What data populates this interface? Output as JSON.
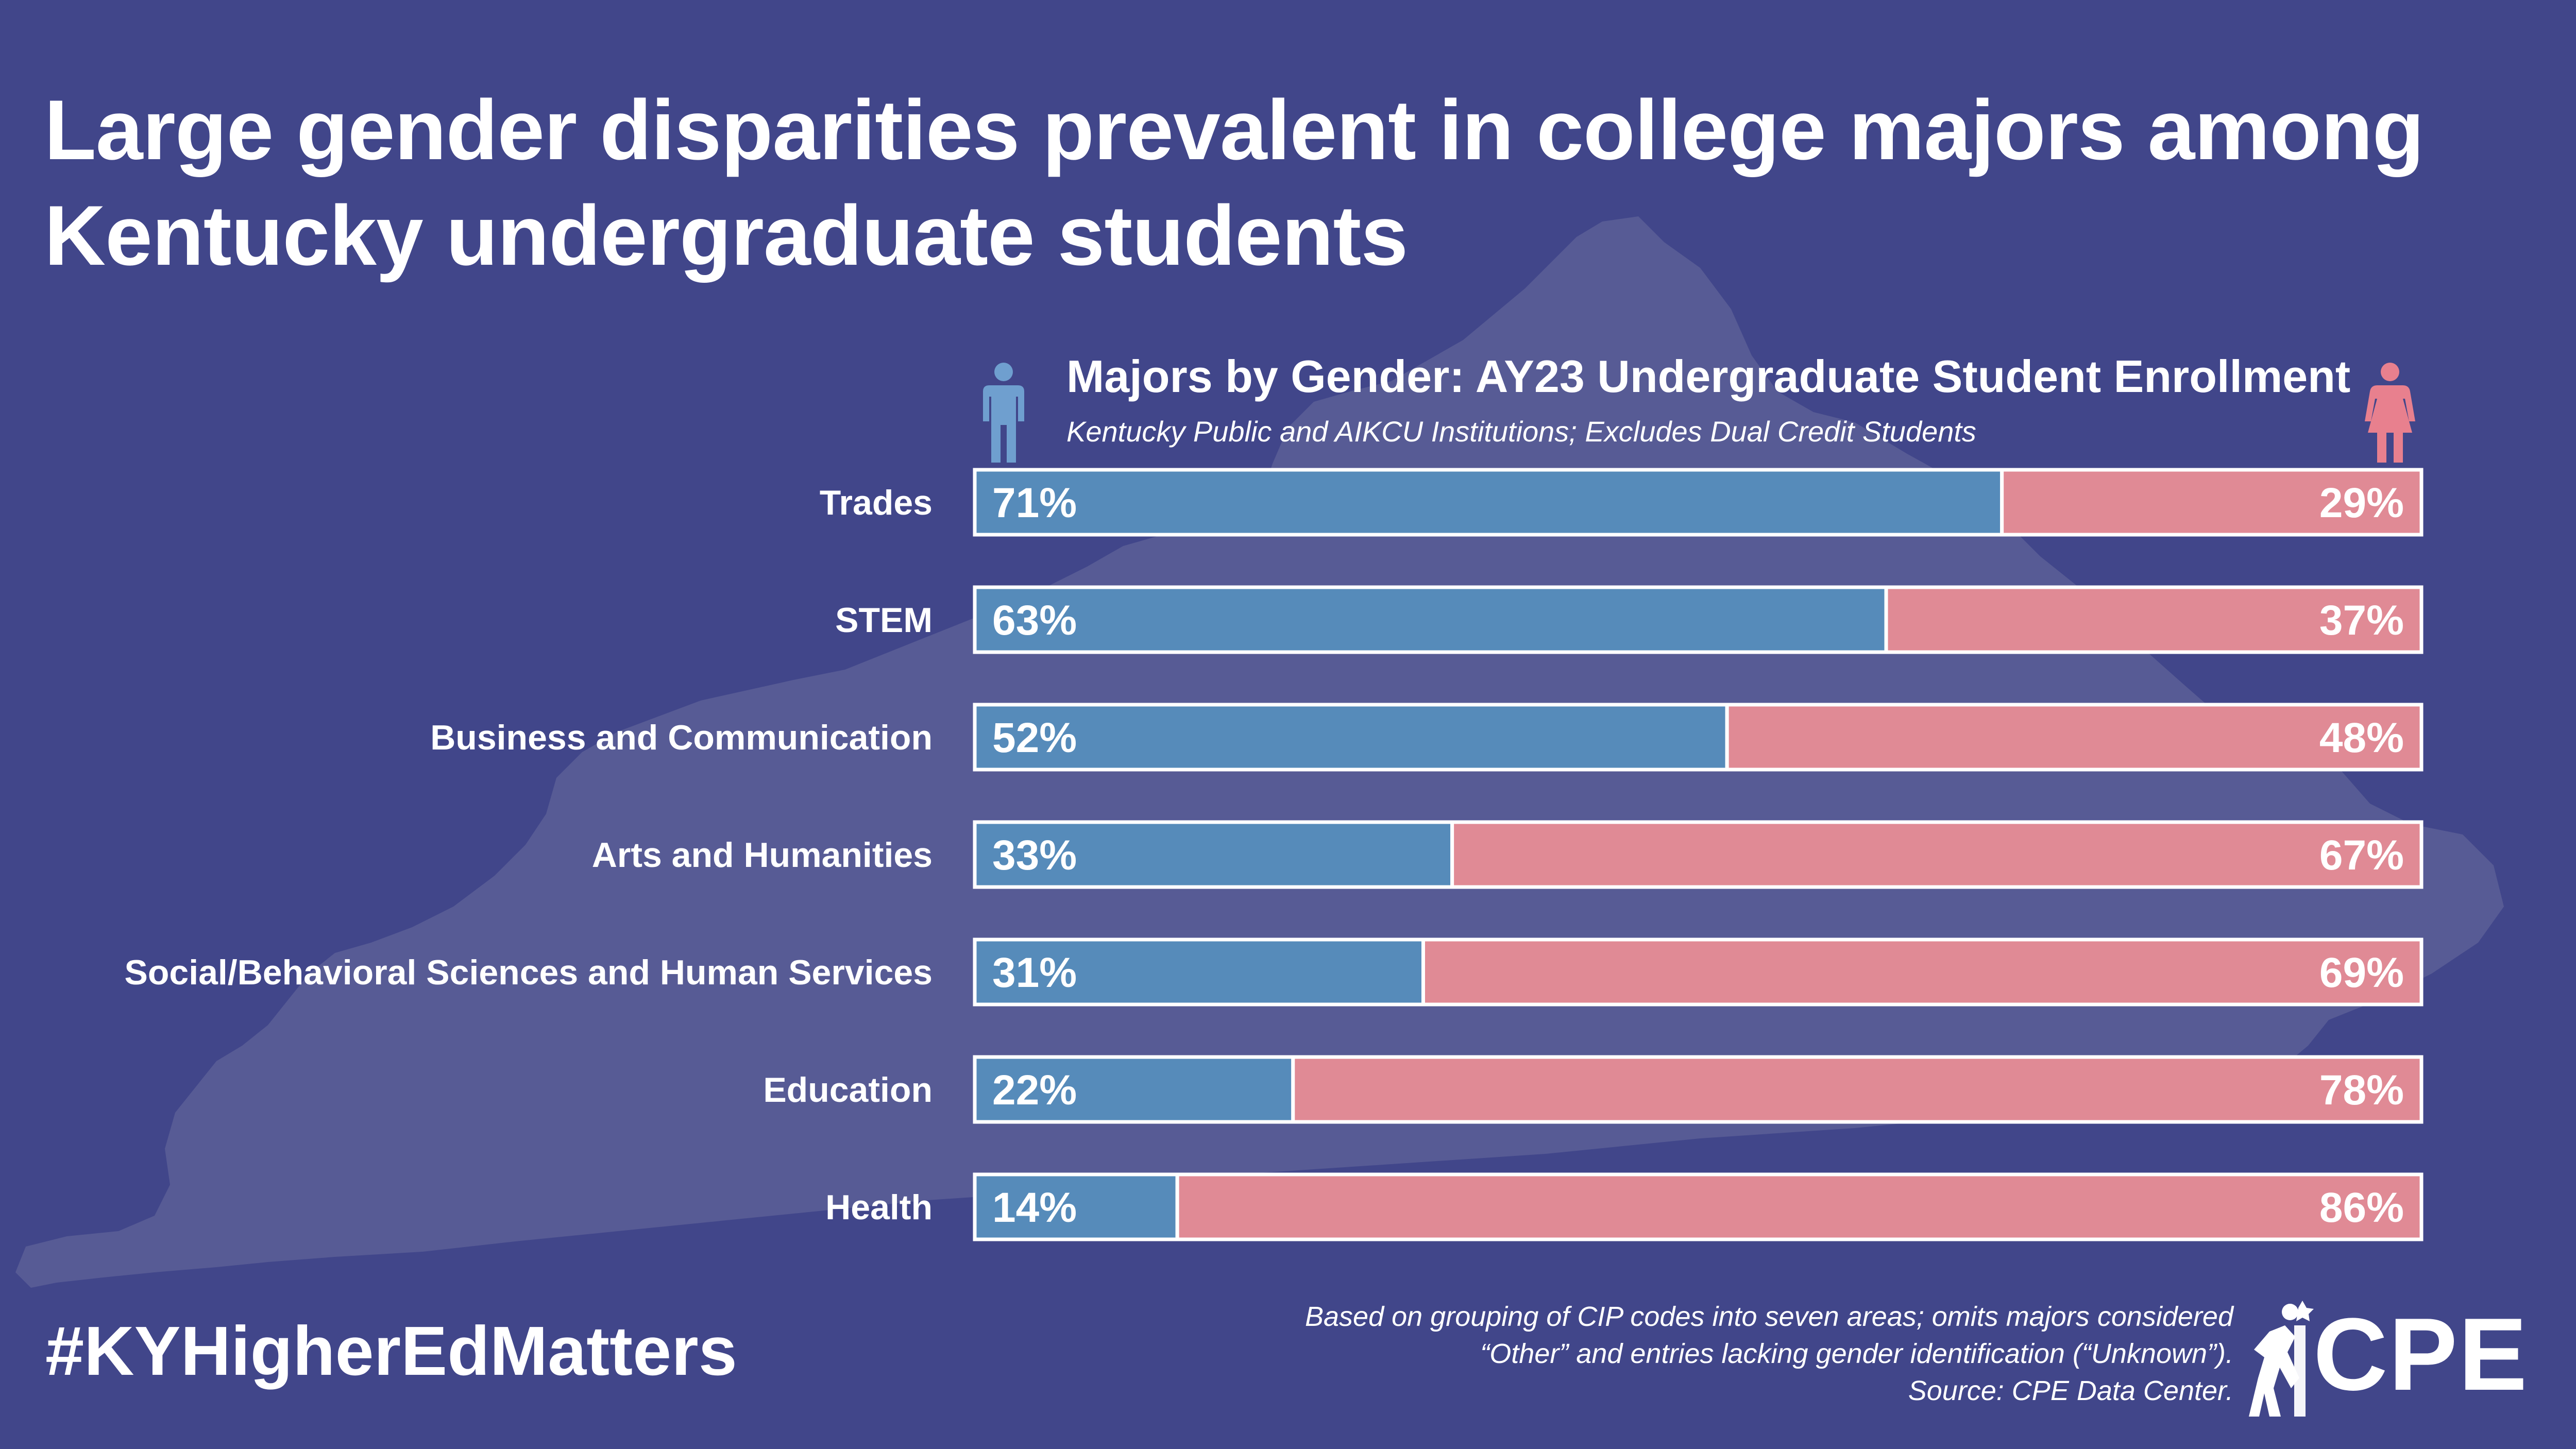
{
  "headline": "Large gender disparities prevalent in college majors among Kentucky undergraduate students",
  "hashtag": "#KYHigherEdMatters",
  "footnote": {
    "line1": "Based on grouping of CIP codes into seven areas; omits majors considered",
    "line2": "“Other” and entries lacking gender identification (“Unknown”).",
    "line3": "Source: CPE Data Center."
  },
  "logo": {
    "text": "CPE"
  },
  "icons": {
    "male": "male-person-icon",
    "female": "female-person-icon"
  },
  "colors": {
    "background": "#41468a",
    "silhouette": "#575b95",
    "male": "#568bba",
    "female": "#e08a95",
    "male_icon": "#6f9fcf",
    "female_icon": "#e8808e",
    "bar_border": "#ffffff"
  },
  "chart_data": {
    "type": "bar",
    "orientation": "horizontal",
    "stacked": true,
    "title": "Majors by Gender: AY23 Undergraduate Student Enrollment",
    "subtitle": "Kentucky Public and AIKCU Institutions; Excludes Dual Credit Students",
    "categories": [
      "Trades",
      "STEM",
      "Business and Communication",
      "Arts and Humanities",
      "Social/Behavioral Sciences and Human Services",
      "Education",
      "Health"
    ],
    "series": [
      {
        "values": [
          71,
          63,
          52,
          33,
          31,
          22,
          14
        ],
        "labels": [
          "71%",
          "63%",
          "52%",
          "33%",
          "31%",
          "22%",
          "14%"
        ]
      },
      {
        "values": [
          29,
          37,
          48,
          67,
          69,
          78,
          86
        ],
        "labels": [
          "29%",
          "37%",
          "48%",
          "67%",
          "69%",
          "78%",
          "86%"
        ]
      }
    ],
    "xlim": [
      0,
      100
    ],
    "grid": false,
    "legend": "none"
  }
}
